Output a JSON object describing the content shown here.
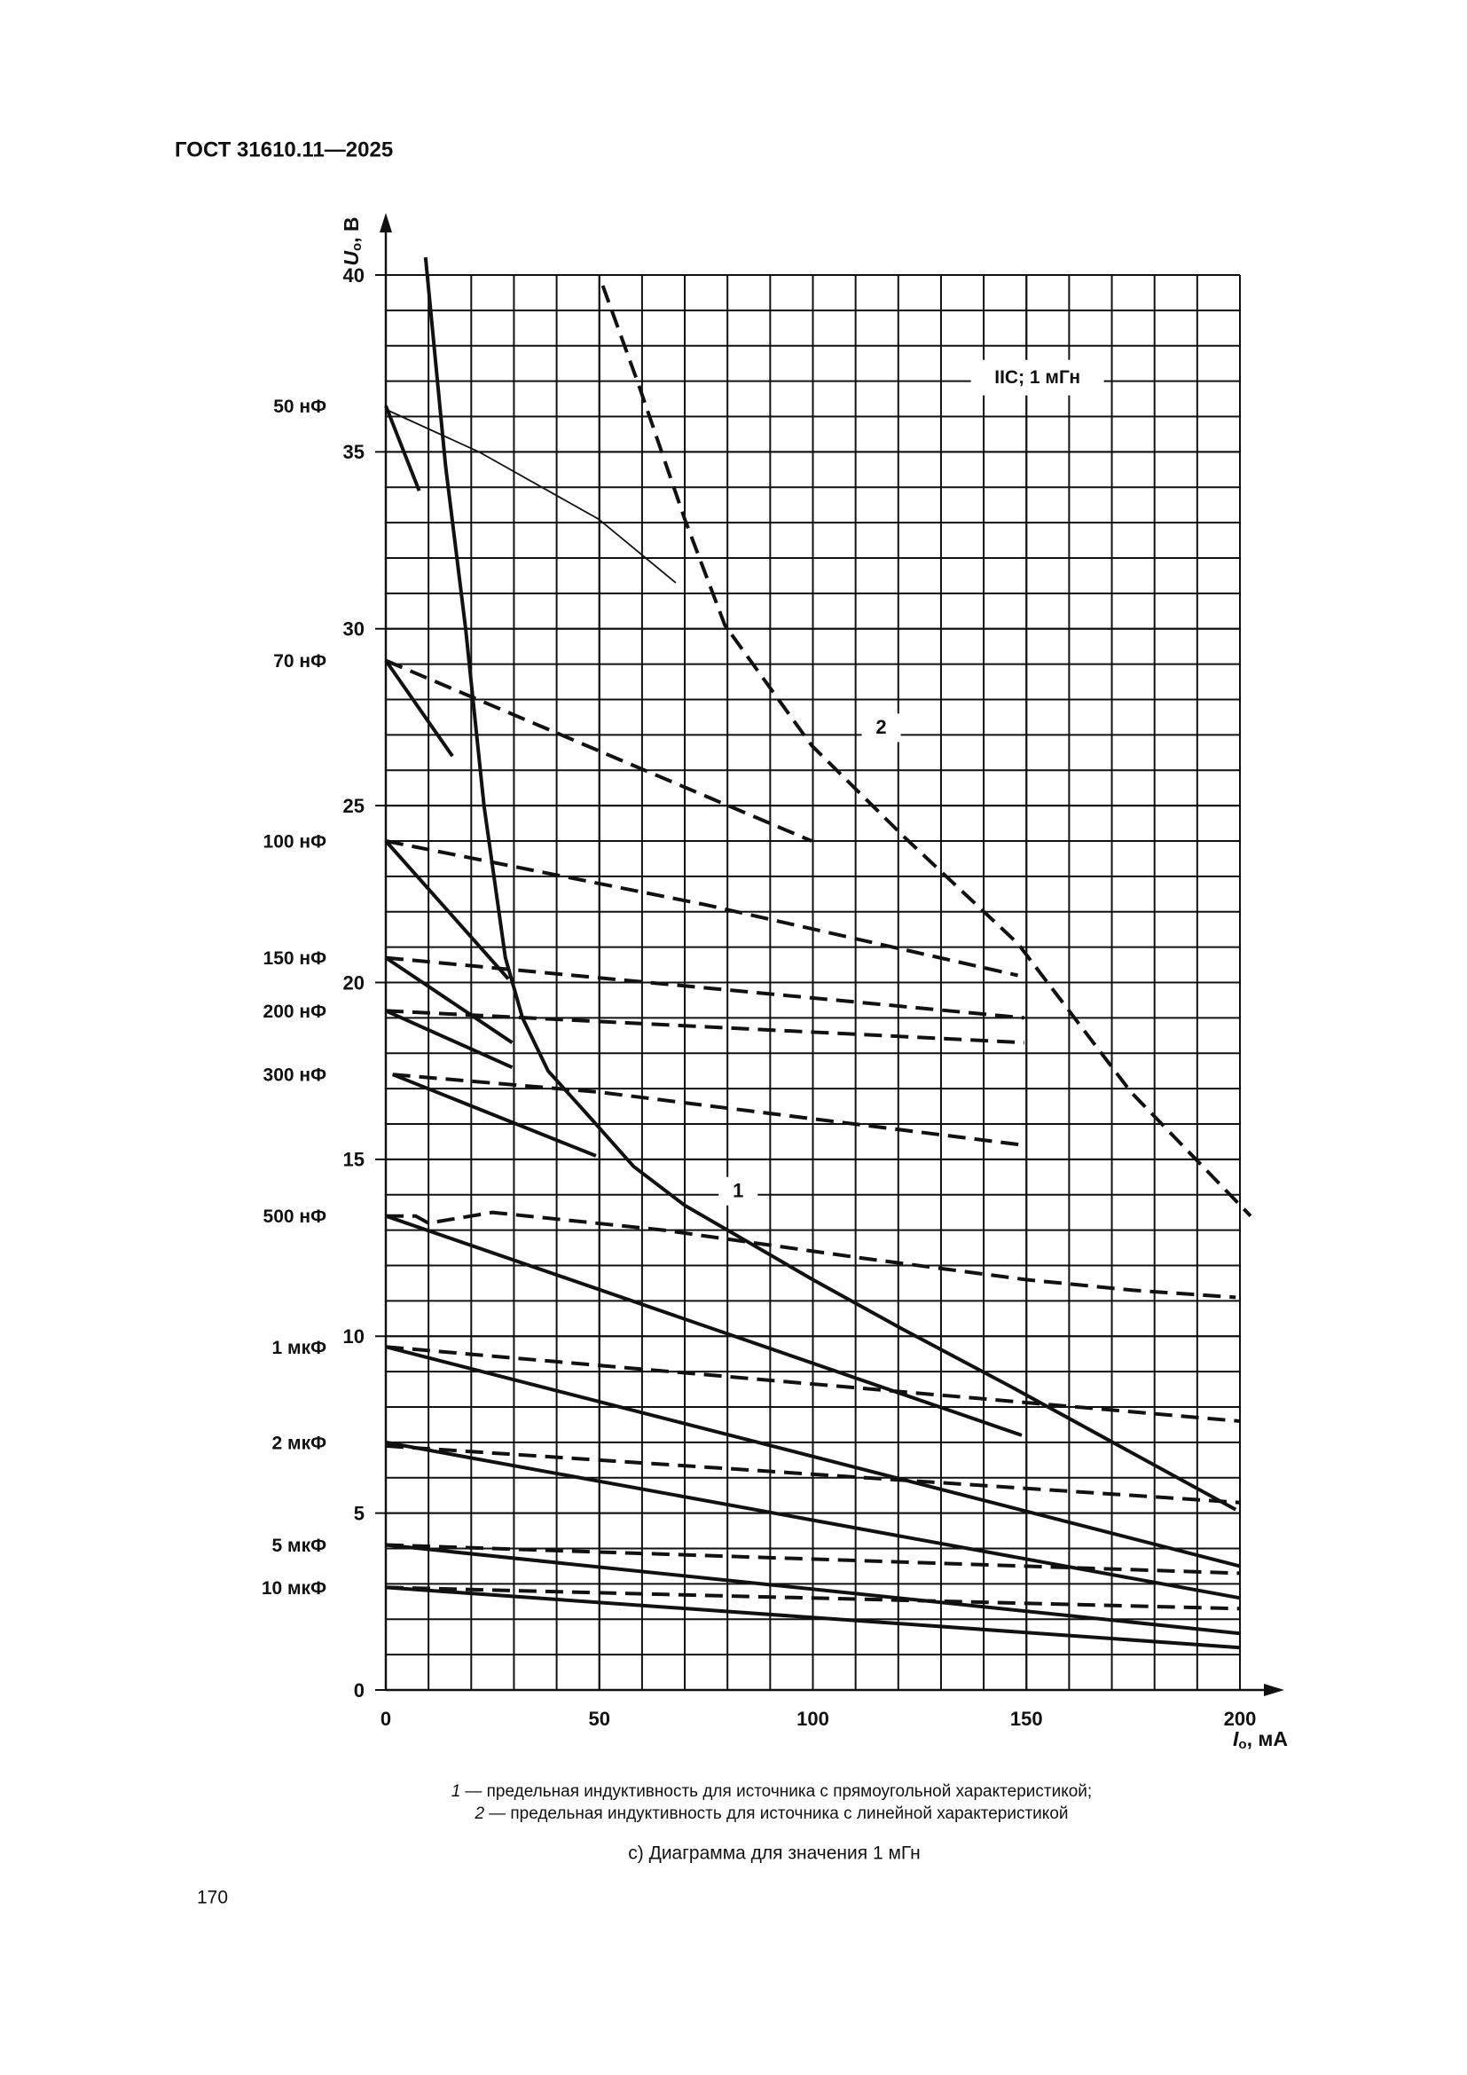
{
  "header": "ГОСТ 31610.11—2025",
  "chart_data": {
    "type": "line",
    "x_label": {
      "symbol": "I",
      "sub": "o",
      "unit": ", мА"
    },
    "y_label": {
      "symbol": "U",
      "sub": "o",
      "unit": ", В"
    },
    "xlim": [
      0,
      200
    ],
    "ylim": [
      0,
      40
    ],
    "xticks": [
      0,
      50,
      100,
      150,
      200
    ],
    "yticks": [
      0,
      5,
      10,
      15,
      20,
      25,
      30,
      35,
      40
    ],
    "grid": true,
    "color": "#111111",
    "box_label": "IIC; 1 мГн",
    "curves": [
      {
        "label": "1",
        "style": "solid",
        "x": [
          9.3,
          14,
          18.7,
          23,
          28,
          32,
          38,
          47.7,
          58,
          70,
          80,
          100,
          121,
          146,
          199
        ],
        "y": [
          40.5,
          34.6,
          30,
          25,
          20.7,
          19,
          17.5,
          16.2,
          14.8,
          13.7,
          13,
          11.6,
          10.2,
          8.6,
          5.1
        ]
      },
      {
        "label": "2",
        "style": "dashed",
        "x": [
          50.8,
          59.2,
          70,
          79.4,
          99.7,
          121.5,
          148,
          174.5,
          202.5
        ],
        "y": [
          39.7,
          36.9,
          33.1,
          30.1,
          26.7,
          24.1,
          21.1,
          16.9,
          13.4
        ]
      }
    ],
    "families": [
      {
        "label": "50 нФ",
        "lines": [
          {
            "style": "solid",
            "x": [
              0,
              7.8
            ],
            "y": [
              36.3,
              33.9
            ]
          },
          {
            "style": "thin",
            "x": [
              0,
              21.8,
              49.8,
              67.9
            ],
            "y": [
              36.2,
              35,
              33.1,
              31.3
            ]
          }
        ]
      },
      {
        "label": "70 нФ",
        "lines": [
          {
            "style": "solid",
            "x": [
              0,
              15.6
            ],
            "y": [
              29.1,
              26.4
            ]
          },
          {
            "style": "dashed",
            "x": [
              0,
              99.7
            ],
            "y": [
              29.1,
              24
            ]
          }
        ]
      },
      {
        "label": "100 нФ",
        "lines": [
          {
            "style": "solid",
            "x": [
              0,
              28.7
            ],
            "y": [
              24,
              20.1
            ]
          },
          {
            "style": "dashed",
            "x": [
              0,
              74.8,
              148
            ],
            "y": [
              24,
              22.2,
              20.2
            ]
          }
        ]
      },
      {
        "label": "150 нФ",
        "lines": [
          {
            "style": "solid",
            "x": [
              0,
              29.6
            ],
            "y": [
              20.7,
              18.3
            ]
          },
          {
            "style": "dashed",
            "x": [
              0,
              149.5
            ],
            "y": [
              20.7,
              19
            ]
          }
        ]
      },
      {
        "label": "200 нФ",
        "lines": [
          {
            "style": "solid",
            "x": [
              0,
              29.6
            ],
            "y": [
              19.2,
              17.6
            ]
          },
          {
            "style": "dashed",
            "x": [
              0,
              149.5
            ],
            "y": [
              19.2,
              18.3
            ]
          }
        ]
      },
      {
        "label": "300 нФ",
        "lines": [
          {
            "style": "solid",
            "x": [
              1.6,
              49.2
            ],
            "y": [
              17.4,
              15.1
            ]
          },
          {
            "style": "dashed",
            "x": [
              1.6,
              50,
              149.5
            ],
            "y": [
              17.4,
              16.9,
              15.4
            ]
          }
        ]
      },
      {
        "label": "500 нФ",
        "lines": [
          {
            "style": "solid",
            "x": [
              0,
              148.9
            ],
            "y": [
              13.4,
              7.2
            ]
          },
          {
            "style": "dashed",
            "x": [
              0,
              7,
              10,
              25,
              65,
              112,
              150,
              175,
              199
            ],
            "y": [
              13.4,
              13.4,
              13.2,
              13.5,
              13,
              12.2,
              11.6,
              11.3,
              11.1
            ]
          }
        ]
      },
      {
        "label": "1 мкФ",
        "lines": [
          {
            "style": "solid",
            "x": [
              0,
              200
            ],
            "y": [
              9.7,
              3.5
            ]
          },
          {
            "style": "dashed",
            "x": [
              0,
              200
            ],
            "y": [
              9.7,
              7.6
            ]
          }
        ]
      },
      {
        "label": "2 мкФ",
        "lines": [
          {
            "style": "solid",
            "x": [
              0,
              200
            ],
            "y": [
              7,
              2.6
            ]
          },
          {
            "style": "dashed",
            "x": [
              0,
              200
            ],
            "y": [
              6.9,
              5.3
            ]
          }
        ]
      },
      {
        "label": "5 мкФ",
        "lines": [
          {
            "style": "solid",
            "x": [
              0,
              200
            ],
            "y": [
              4.1,
              1.6
            ]
          },
          {
            "style": "dashed",
            "x": [
              0,
              200
            ],
            "y": [
              4.1,
              3.3
            ]
          }
        ]
      },
      {
        "label": "10 мкФ",
        "lines": [
          {
            "style": "solid",
            "x": [
              0,
              200
            ],
            "y": [
              2.9,
              1.2
            ]
          },
          {
            "style": "dashed",
            "x": [
              0,
              200
            ],
            "y": [
              2.9,
              2.3
            ]
          }
        ]
      }
    ]
  },
  "legend": [
    {
      "number": "1",
      "text": "— предельная индуктивность для источника с прямоугольной характеристикой;"
    },
    {
      "number": "2",
      "text": "— предельная индуктивность для источника с линейной характеристикой"
    }
  ],
  "caption": "с) Диаграмма для значения 1 мГн",
  "page_number": "170"
}
